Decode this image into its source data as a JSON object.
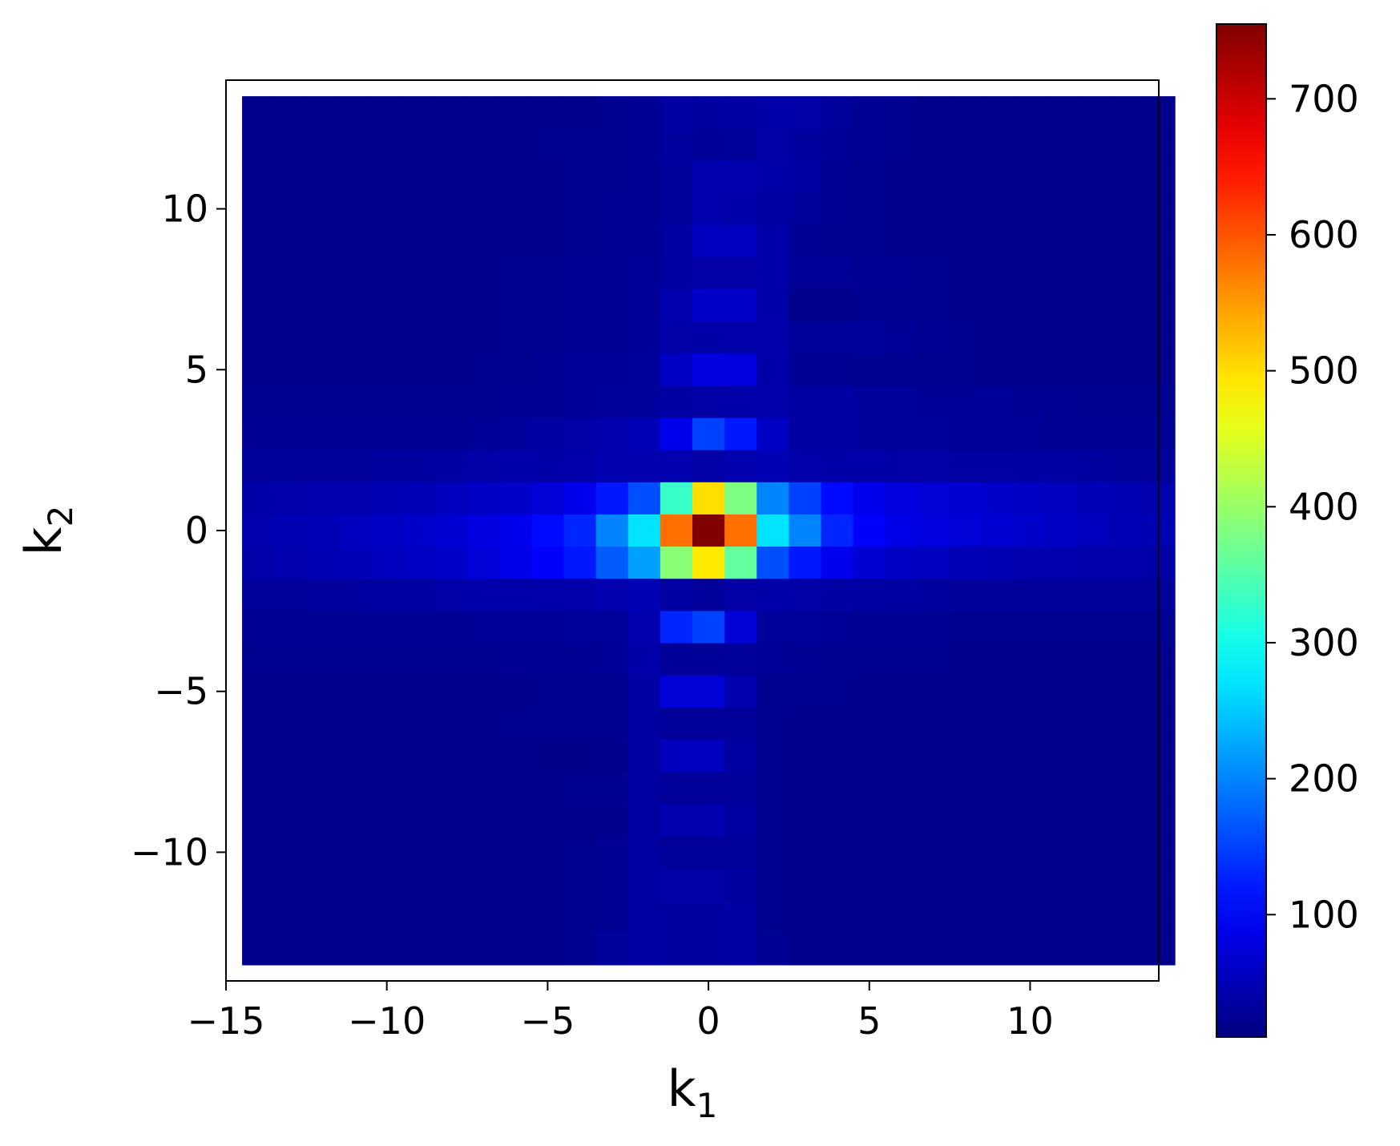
{
  "chart_data": {
    "type": "heatmap",
    "title": "",
    "xlabel": {
      "text": "k",
      "sub": "1"
    },
    "ylabel": {
      "text": "k",
      "sub": "2"
    },
    "xlim": [
      -15,
      14
    ],
    "ylim": [
      -14,
      14
    ],
    "xticks": [
      {
        "value": -15,
        "label": "−15"
      },
      {
        "value": -10,
        "label": "−10"
      },
      {
        "value": -5,
        "label": "−5"
      },
      {
        "value": 0,
        "label": "0"
      },
      {
        "value": 5,
        "label": "5"
      },
      {
        "value": 10,
        "label": "10"
      }
    ],
    "yticks": [
      {
        "value": -10,
        "label": "−10"
      },
      {
        "value": -5,
        "label": "−5"
      },
      {
        "value": 0,
        "label": "0"
      },
      {
        "value": 5,
        "label": "5"
      },
      {
        "value": 10,
        "label": "10"
      }
    ],
    "colormap": "jet",
    "colorbar": {
      "vmin": 10,
      "vmax": 755,
      "ticks": [
        {
          "value": 100,
          "label": "100"
        },
        {
          "value": 200,
          "label": "200"
        },
        {
          "value": 300,
          "label": "300"
        },
        {
          "value": 400,
          "label": "400"
        },
        {
          "value": 500,
          "label": "500"
        },
        {
          "value": 600,
          "label": "600"
        },
        {
          "value": 700,
          "label": "700"
        }
      ]
    },
    "k1": [
      -14,
      -13,
      -12,
      -11,
      -10,
      -9,
      -8,
      -7,
      -6,
      -5,
      -4,
      -3,
      -2,
      -1,
      0,
      1,
      2,
      3,
      4,
      5,
      6,
      7,
      8,
      9,
      10,
      11,
      12,
      13,
      14
    ],
    "k2": [
      13,
      12,
      11,
      10,
      9,
      8,
      7,
      6,
      5,
      4,
      3,
      2,
      1,
      0,
      -1,
      -2,
      -3,
      -4,
      -5,
      -6,
      -7,
      -8,
      -9,
      -10,
      -11,
      -12,
      -13
    ],
    "values": [
      [
        20,
        20,
        20,
        20,
        20,
        20,
        20,
        20,
        20,
        20,
        20,
        22,
        25,
        35,
        32,
        35,
        40,
        38,
        30,
        25,
        22,
        20,
        20,
        20,
        20,
        20,
        20,
        20,
        20
      ],
      [
        20,
        20,
        20,
        20,
        20,
        20,
        20,
        20,
        20,
        22,
        22,
        22,
        25,
        33,
        28,
        30,
        38,
        32,
        28,
        25,
        22,
        20,
        20,
        20,
        20,
        20,
        20,
        20,
        20
      ],
      [
        20,
        20,
        20,
        20,
        20,
        20,
        20,
        20,
        20,
        20,
        22,
        22,
        25,
        30,
        45,
        45,
        40,
        35,
        25,
        22,
        20,
        20,
        20,
        20,
        20,
        20,
        20,
        20,
        20
      ],
      [
        20,
        20,
        20,
        20,
        20,
        20,
        20,
        20,
        20,
        20,
        22,
        25,
        25,
        30,
        45,
        40,
        35,
        30,
        25,
        22,
        20,
        20,
        20,
        20,
        20,
        20,
        20,
        20,
        20
      ],
      [
        20,
        20,
        20,
        20,
        20,
        20,
        20,
        20,
        20,
        20,
        22,
        25,
        25,
        35,
        55,
        55,
        40,
        25,
        22,
        22,
        20,
        20,
        20,
        20,
        20,
        20,
        20,
        20,
        20
      ],
      [
        20,
        20,
        20,
        20,
        20,
        20,
        20,
        20,
        22,
        22,
        25,
        25,
        28,
        35,
        38,
        38,
        40,
        28,
        28,
        25,
        25,
        22,
        20,
        20,
        20,
        20,
        20,
        20,
        20
      ],
      [
        20,
        20,
        20,
        20,
        20,
        20,
        20,
        20,
        22,
        22,
        25,
        25,
        28,
        45,
        65,
        65,
        40,
        20,
        20,
        22,
        22,
        22,
        20,
        20,
        20,
        20,
        20,
        20,
        20
      ],
      [
        20,
        20,
        20,
        20,
        20,
        20,
        20,
        20,
        22,
        22,
        25,
        25,
        28,
        38,
        40,
        42,
        42,
        30,
        30,
        30,
        28,
        25,
        22,
        20,
        20,
        20,
        20,
        20,
        20
      ],
      [
        20,
        20,
        20,
        20,
        20,
        20,
        20,
        22,
        22,
        25,
        28,
        28,
        30,
        60,
        80,
        80,
        40,
        25,
        25,
        22,
        22,
        22,
        22,
        20,
        20,
        20,
        20,
        20,
        20
      ],
      [
        22,
        22,
        22,
        22,
        22,
        22,
        22,
        22,
        25,
        25,
        28,
        30,
        30,
        35,
        38,
        40,
        42,
        35,
        35,
        30,
        30,
        28,
        28,
        28,
        25,
        25,
        22,
        22,
        22
      ],
      [
        25,
        25,
        25,
        25,
        25,
        25,
        25,
        28,
        30,
        35,
        38,
        45,
        50,
        90,
        150,
        120,
        60,
        35,
        35,
        30,
        30,
        30,
        28,
        28,
        28,
        25,
        25,
        25,
        25
      ],
      [
        30,
        30,
        30,
        30,
        32,
        32,
        35,
        38,
        40,
        40,
        42,
        45,
        45,
        45,
        38,
        45,
        48,
        42,
        40,
        40,
        38,
        38,
        36,
        36,
        35,
        35,
        32,
        30,
        30
      ],
      [
        40,
        42,
        45,
        45,
        48,
        50,
        55,
        60,
        65,
        75,
        90,
        120,
        160,
        330,
        500,
        380,
        200,
        150,
        110,
        90,
        80,
        75,
        70,
        65,
        60,
        55,
        50,
        48,
        45
      ],
      [
        45,
        48,
        50,
        55,
        60,
        65,
        70,
        80,
        90,
        110,
        130,
        200,
        270,
        580,
        755,
        580,
        270,
        200,
        130,
        100,
        85,
        80,
        75,
        70,
        65,
        60,
        55,
        50,
        48
      ],
      [
        42,
        45,
        48,
        50,
        55,
        60,
        65,
        75,
        85,
        100,
        120,
        170,
        220,
        390,
        490,
        360,
        160,
        120,
        90,
        70,
        60,
        55,
        50,
        48,
        45,
        45,
        42,
        42,
        40
      ],
      [
        30,
        30,
        32,
        32,
        35,
        35,
        38,
        40,
        40,
        42,
        42,
        45,
        48,
        35,
        30,
        38,
        40,
        38,
        36,
        35,
        34,
        32,
        30,
        30,
        30,
        30,
        30,
        30,
        30
      ],
      [
        25,
        25,
        25,
        25,
        25,
        25,
        25,
        28,
        28,
        28,
        30,
        30,
        45,
        130,
        150,
        75,
        30,
        30,
        28,
        25,
        25,
        25,
        22,
        22,
        22,
        22,
        22,
        22,
        22
      ],
      [
        22,
        22,
        22,
        22,
        22,
        22,
        22,
        22,
        25,
        25,
        25,
        28,
        40,
        28,
        28,
        30,
        28,
        25,
        22,
        22,
        22,
        22,
        20,
        20,
        20,
        20,
        20,
        20,
        20
      ],
      [
        20,
        20,
        20,
        20,
        20,
        20,
        20,
        20,
        20,
        22,
        22,
        22,
        35,
        75,
        75,
        45,
        22,
        22,
        22,
        20,
        20,
        20,
        20,
        20,
        20,
        20,
        20,
        20,
        20
      ],
      [
        20,
        20,
        20,
        20,
        20,
        20,
        20,
        20,
        22,
        22,
        22,
        22,
        35,
        30,
        30,
        30,
        22,
        20,
        20,
        20,
        20,
        20,
        20,
        20,
        20,
        20,
        20,
        20,
        20
      ],
      [
        20,
        20,
        20,
        20,
        20,
        20,
        20,
        20,
        20,
        18,
        18,
        20,
        35,
        55,
        55,
        35,
        22,
        20,
        20,
        20,
        20,
        20,
        20,
        20,
        20,
        20,
        20,
        20,
        20
      ],
      [
        20,
        20,
        20,
        20,
        20,
        20,
        20,
        20,
        20,
        20,
        22,
        22,
        35,
        30,
        30,
        30,
        22,
        20,
        20,
        20,
        20,
        20,
        20,
        20,
        20,
        20,
        20,
        20,
        20
      ],
      [
        20,
        20,
        20,
        20,
        20,
        20,
        20,
        20,
        20,
        20,
        20,
        20,
        35,
        45,
        45,
        35,
        22,
        20,
        20,
        20,
        20,
        20,
        20,
        20,
        20,
        20,
        20,
        20,
        20
      ],
      [
        20,
        20,
        20,
        20,
        20,
        20,
        20,
        20,
        20,
        20,
        22,
        25,
        35,
        30,
        30,
        30,
        22,
        20,
        20,
        20,
        20,
        20,
        20,
        20,
        20,
        20,
        20,
        20,
        20
      ],
      [
        20,
        20,
        20,
        20,
        20,
        20,
        20,
        20,
        20,
        20,
        22,
        25,
        35,
        38,
        38,
        32,
        22,
        20,
        20,
        20,
        20,
        20,
        20,
        20,
        20,
        20,
        20,
        20,
        20
      ],
      [
        20,
        20,
        20,
        20,
        20,
        20,
        20,
        20,
        20,
        20,
        22,
        25,
        35,
        32,
        32,
        35,
        22,
        20,
        20,
        20,
        20,
        20,
        20,
        20,
        20,
        20,
        20,
        20,
        20
      ],
      [
        20,
        20,
        20,
        20,
        20,
        20,
        20,
        20,
        20,
        20,
        22,
        30,
        35,
        32,
        32,
        35,
        25,
        20,
        20,
        20,
        20,
        20,
        20,
        20,
        20,
        20,
        20,
        20,
        20
      ]
    ]
  }
}
